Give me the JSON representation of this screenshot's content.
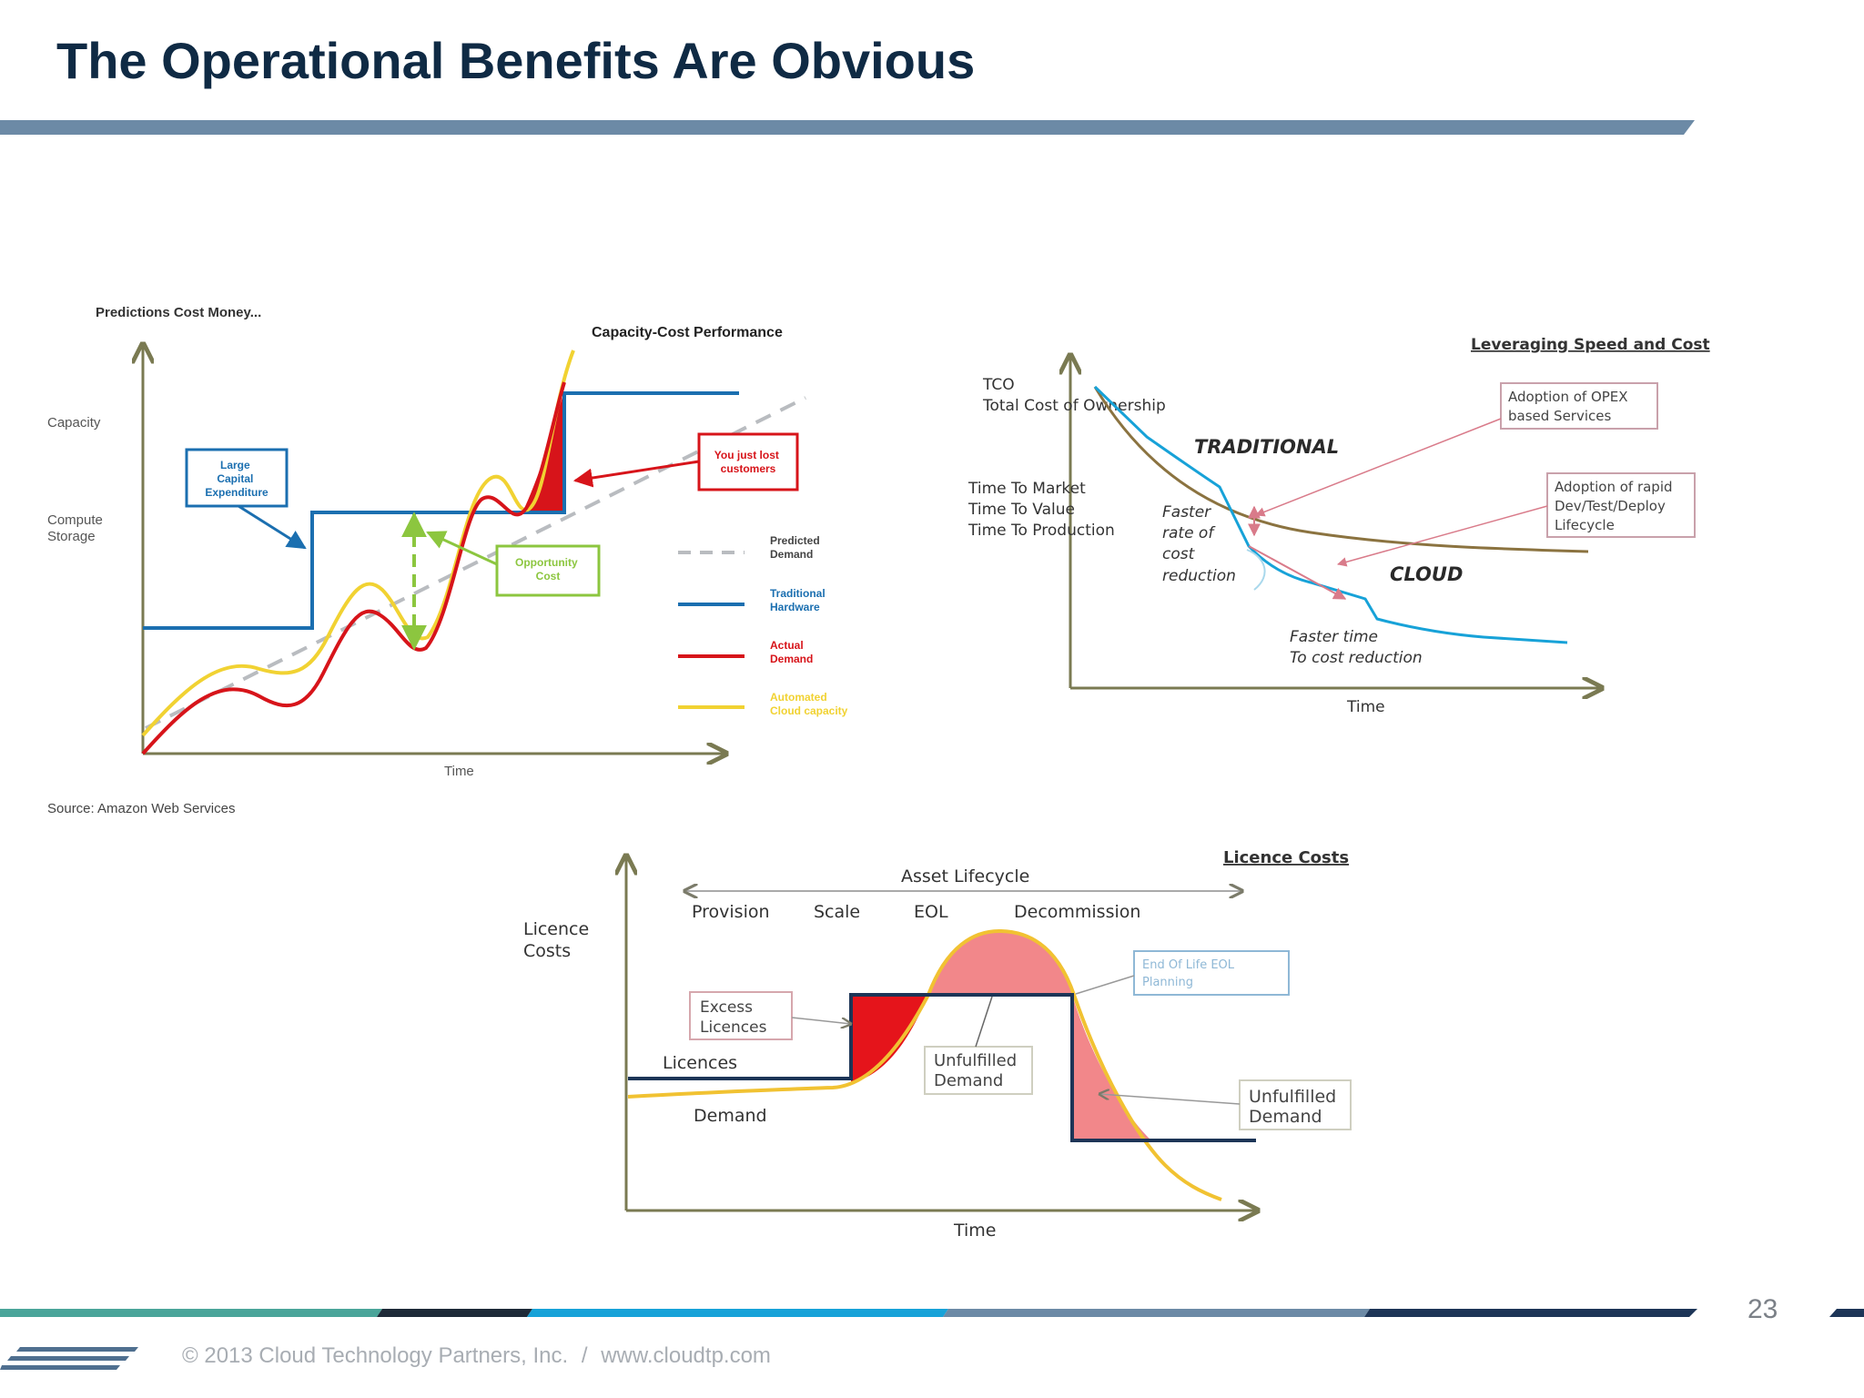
{
  "slide": {
    "title": "The Operational Benefits Are Obvious",
    "page_number": "23",
    "footer_copyright": "© 2013 Cloud Technology Partners, Inc.",
    "footer_separator": "/",
    "footer_url": "www.cloudtp.com",
    "colors": {
      "title": "#0f2a44",
      "accent_steel": "#6c8aa6",
      "accent_navy": "#1d3557",
      "accent_cyan": "#17a2d8",
      "accent_teal": "#4aa59a"
    }
  },
  "chart1": {
    "heading": "Predictions Cost Money...",
    "subtitle": "Capacity-Cost Performance",
    "y_label_1": "Capacity",
    "y_label_2a": "Compute",
    "y_label_2b": "Storage",
    "x_label": "Time",
    "source": "Source: Amazon Web Services",
    "callout_capex": [
      "Large",
      "Capital",
      "Expenditure"
    ],
    "callout_lost": [
      "You just lost",
      "customers"
    ],
    "callout_opportunity": [
      "Opportunity",
      "Cost"
    ],
    "legend": [
      {
        "label": [
          "Predicted",
          "Demand"
        ],
        "color": "#b9bcc0",
        "style": "dashed"
      },
      {
        "label": [
          "Traditional",
          "Hardware"
        ],
        "color": "#1b6fb0",
        "style": "solid"
      },
      {
        "label": [
          "Actual",
          "Demand"
        ],
        "color": "#d7141a",
        "style": "solid"
      },
      {
        "label": [
          "Automated",
          "Cloud capacity"
        ],
        "color": "#f1d232",
        "style": "solid"
      }
    ]
  },
  "chart2": {
    "heading": "Leveraging Speed and Cost",
    "y_label_tco": "TCO",
    "y_label_tco_full": "Total Cost of Ownership",
    "y_label_ttm": "Time To Market",
    "y_label_ttv": "Time To Value",
    "y_label_ttp": "Time To Production",
    "curve_traditional": "TRADITIONAL",
    "curve_cloud": "CLOUD",
    "note_faster_rate": [
      "Faster",
      "rate of",
      "cost",
      "reduction"
    ],
    "note_faster_time": [
      "Faster time",
      "To cost reduction"
    ],
    "callout_opex": [
      "Adoption of OPEX",
      "based Services"
    ],
    "callout_devtest": [
      "Adoption of rapid",
      "Dev/Test/Deploy",
      "Lifecycle"
    ],
    "x_label": "Time"
  },
  "chart3": {
    "heading": "Licence Costs",
    "lifecycle_label": "Asset Lifecycle",
    "phases": [
      "Provision",
      "Scale",
      "EOL",
      "Decommission"
    ],
    "y_label": [
      "Licence",
      "Costs"
    ],
    "series_licences": "Licences",
    "series_demand": "Demand",
    "callout_excess": [
      "Excess",
      "Licences"
    ],
    "callout_unfulfilled_1": [
      "Unfulfilled",
      "Demand"
    ],
    "callout_unfulfilled_2": [
      "Unfulfilled",
      "Demand"
    ],
    "callout_eol": [
      "End Of Life EOL",
      "Planning"
    ],
    "x_label": "Time"
  }
}
